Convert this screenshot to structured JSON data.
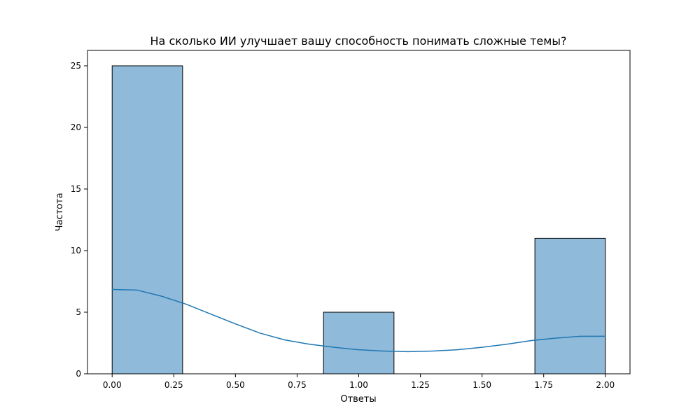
{
  "chart_data": {
    "type": "bar",
    "title": "На сколько ИИ улучшает вашу способность понимать сложные темы?",
    "xlabel": "Ответы",
    "ylabel": "Частота",
    "xlim": [
      -0.1,
      2.1
    ],
    "ylim": [
      0,
      26.25
    ],
    "bins": [
      {
        "start": 0.0,
        "end": 0.2857,
        "count": 25
      },
      {
        "start": 0.8571,
        "end": 1.1429,
        "count": 5
      },
      {
        "start": 1.7143,
        "end": 2.0,
        "count": 11
      }
    ],
    "kde": {
      "x": [
        0.0,
        0.1,
        0.2,
        0.3,
        0.4,
        0.5,
        0.6,
        0.7,
        0.8,
        0.9,
        1.0,
        1.1,
        1.2,
        1.3,
        1.4,
        1.5,
        1.6,
        1.7,
        1.8,
        1.9,
        2.0
      ],
      "y": [
        6.85,
        6.8,
        6.3,
        5.65,
        4.85,
        4.05,
        3.3,
        2.75,
        2.4,
        2.15,
        1.95,
        1.85,
        1.8,
        1.85,
        1.95,
        2.15,
        2.4,
        2.7,
        2.9,
        3.05,
        3.05
      ]
    },
    "x_ticks": [
      "0.00",
      "0.25",
      "0.50",
      "0.75",
      "1.00",
      "1.25",
      "1.50",
      "1.75",
      "2.00"
    ],
    "y_ticks": [
      "0",
      "5",
      "10",
      "15",
      "20",
      "25"
    ],
    "grid": false,
    "colors": {
      "bar_fill": "#8fbad9",
      "bar_edge": "#000000",
      "kde_line": "#1f77b4"
    }
  }
}
